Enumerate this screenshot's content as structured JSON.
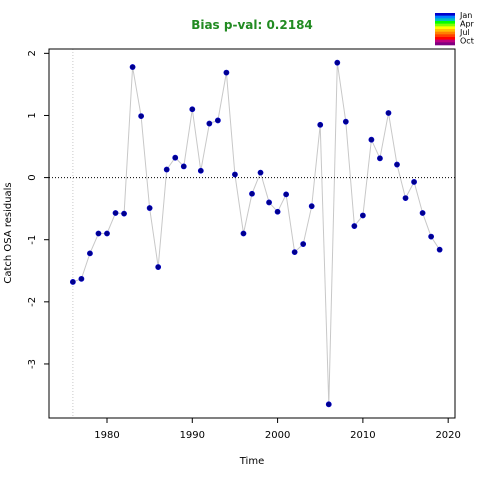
{
  "chart_data": {
    "type": "scatter",
    "title": "Bias p-val: 0.2184",
    "title_color": "#228B22",
    "xlabel": "Time",
    "ylabel": "Catch OSA residuals",
    "xlim": [
      1973.2,
      2020.8
    ],
    "ylim": [
      -3.87,
      2.07
    ],
    "xticks": [
      1980,
      1990,
      2000,
      2010,
      2020
    ],
    "yticks": [
      -3,
      -2,
      -1,
      0,
      1,
      2
    ],
    "reference_hline": 0,
    "reference_vline": 1976,
    "grid": false,
    "point_color": "#00008B",
    "line_color": "#c8c8c8",
    "legend": {
      "placement": "top-right",
      "labels": [
        "Jan",
        "Apr",
        "Jul",
        "Oct"
      ],
      "colors": [
        "#0000CD",
        "#0080FF",
        "#00C0C0",
        "#00FF00",
        "#80FF00",
        "#FFFF00",
        "#FFC000",
        "#FF8000",
        "#FF4000",
        "#FF0000",
        "#C0007F",
        "#800080"
      ]
    },
    "x": [
      1976,
      1977,
      1978,
      1979,
      1980,
      1981,
      1982,
      1983,
      1984,
      1985,
      1986,
      1987,
      1988,
      1989,
      1990,
      1991,
      1992,
      1993,
      1994,
      1995,
      1996,
      1997,
      1998,
      1999,
      2000,
      2001,
      2002,
      2003,
      2004,
      2005,
      2006,
      2007,
      2008,
      2009,
      2010,
      2011,
      2012,
      2013,
      2014,
      2015,
      2016,
      2017,
      2018,
      2019
    ],
    "y": [
      -1.68,
      -1.63,
      -1.22,
      -0.9,
      -0.9,
      -0.57,
      -0.58,
      1.78,
      0.99,
      -0.49,
      -1.44,
      0.13,
      0.32,
      0.18,
      1.1,
      0.11,
      0.87,
      0.92,
      1.69,
      0.05,
      -0.9,
      -0.26,
      0.08,
      -0.4,
      -0.55,
      -0.27,
      -1.2,
      -1.07,
      -0.46,
      0.85,
      -3.65,
      1.85,
      0.9,
      -0.78,
      -0.61,
      0.61,
      0.31,
      1.04,
      0.21,
      -0.33,
      -0.07,
      -0.57,
      -0.95,
      -1.16
    ]
  }
}
